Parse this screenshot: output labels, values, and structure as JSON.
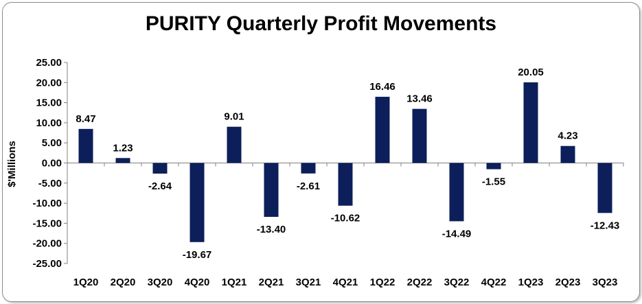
{
  "chart_data": {
    "type": "bar",
    "title": "PURITY Quarterly Profit Movements",
    "xlabel": "",
    "ylabel": "$'Millions",
    "ylim": [
      -25,
      25
    ],
    "yticks": [
      25,
      20,
      15,
      10,
      5,
      0,
      -5,
      -10,
      -15,
      -20,
      -25
    ],
    "ytick_labels": [
      "25.00",
      "20.00",
      "15.00",
      "10.00",
      "5.00",
      "0.00",
      "-5.00",
      "-10.00",
      "-15.00",
      "-20.00",
      "-25.00"
    ],
    "categories": [
      "1Q20",
      "2Q20",
      "3Q20",
      "4Q20",
      "1Q21",
      "2Q21",
      "3Q21",
      "4Q21",
      "1Q22",
      "2Q22",
      "3Q22",
      "4Q22",
      "1Q23",
      "2Q23",
      "3Q23"
    ],
    "values": [
      8.47,
      1.23,
      -2.64,
      -19.67,
      9.01,
      -13.4,
      -2.61,
      -10.62,
      16.46,
      13.46,
      -14.49,
      -1.55,
      20.05,
      4.23,
      -12.43
    ],
    "value_labels": [
      "8.47",
      "1.23",
      "-2.64",
      "-19.67",
      "9.01",
      "-13.40",
      "-2.61",
      "-10.62",
      "16.46",
      "13.46",
      "-14.49",
      "-1.55",
      "20.05",
      "4.23",
      "-12.43"
    ],
    "bar_color": "#0c1f5a",
    "grid": false,
    "legend": "none"
  }
}
